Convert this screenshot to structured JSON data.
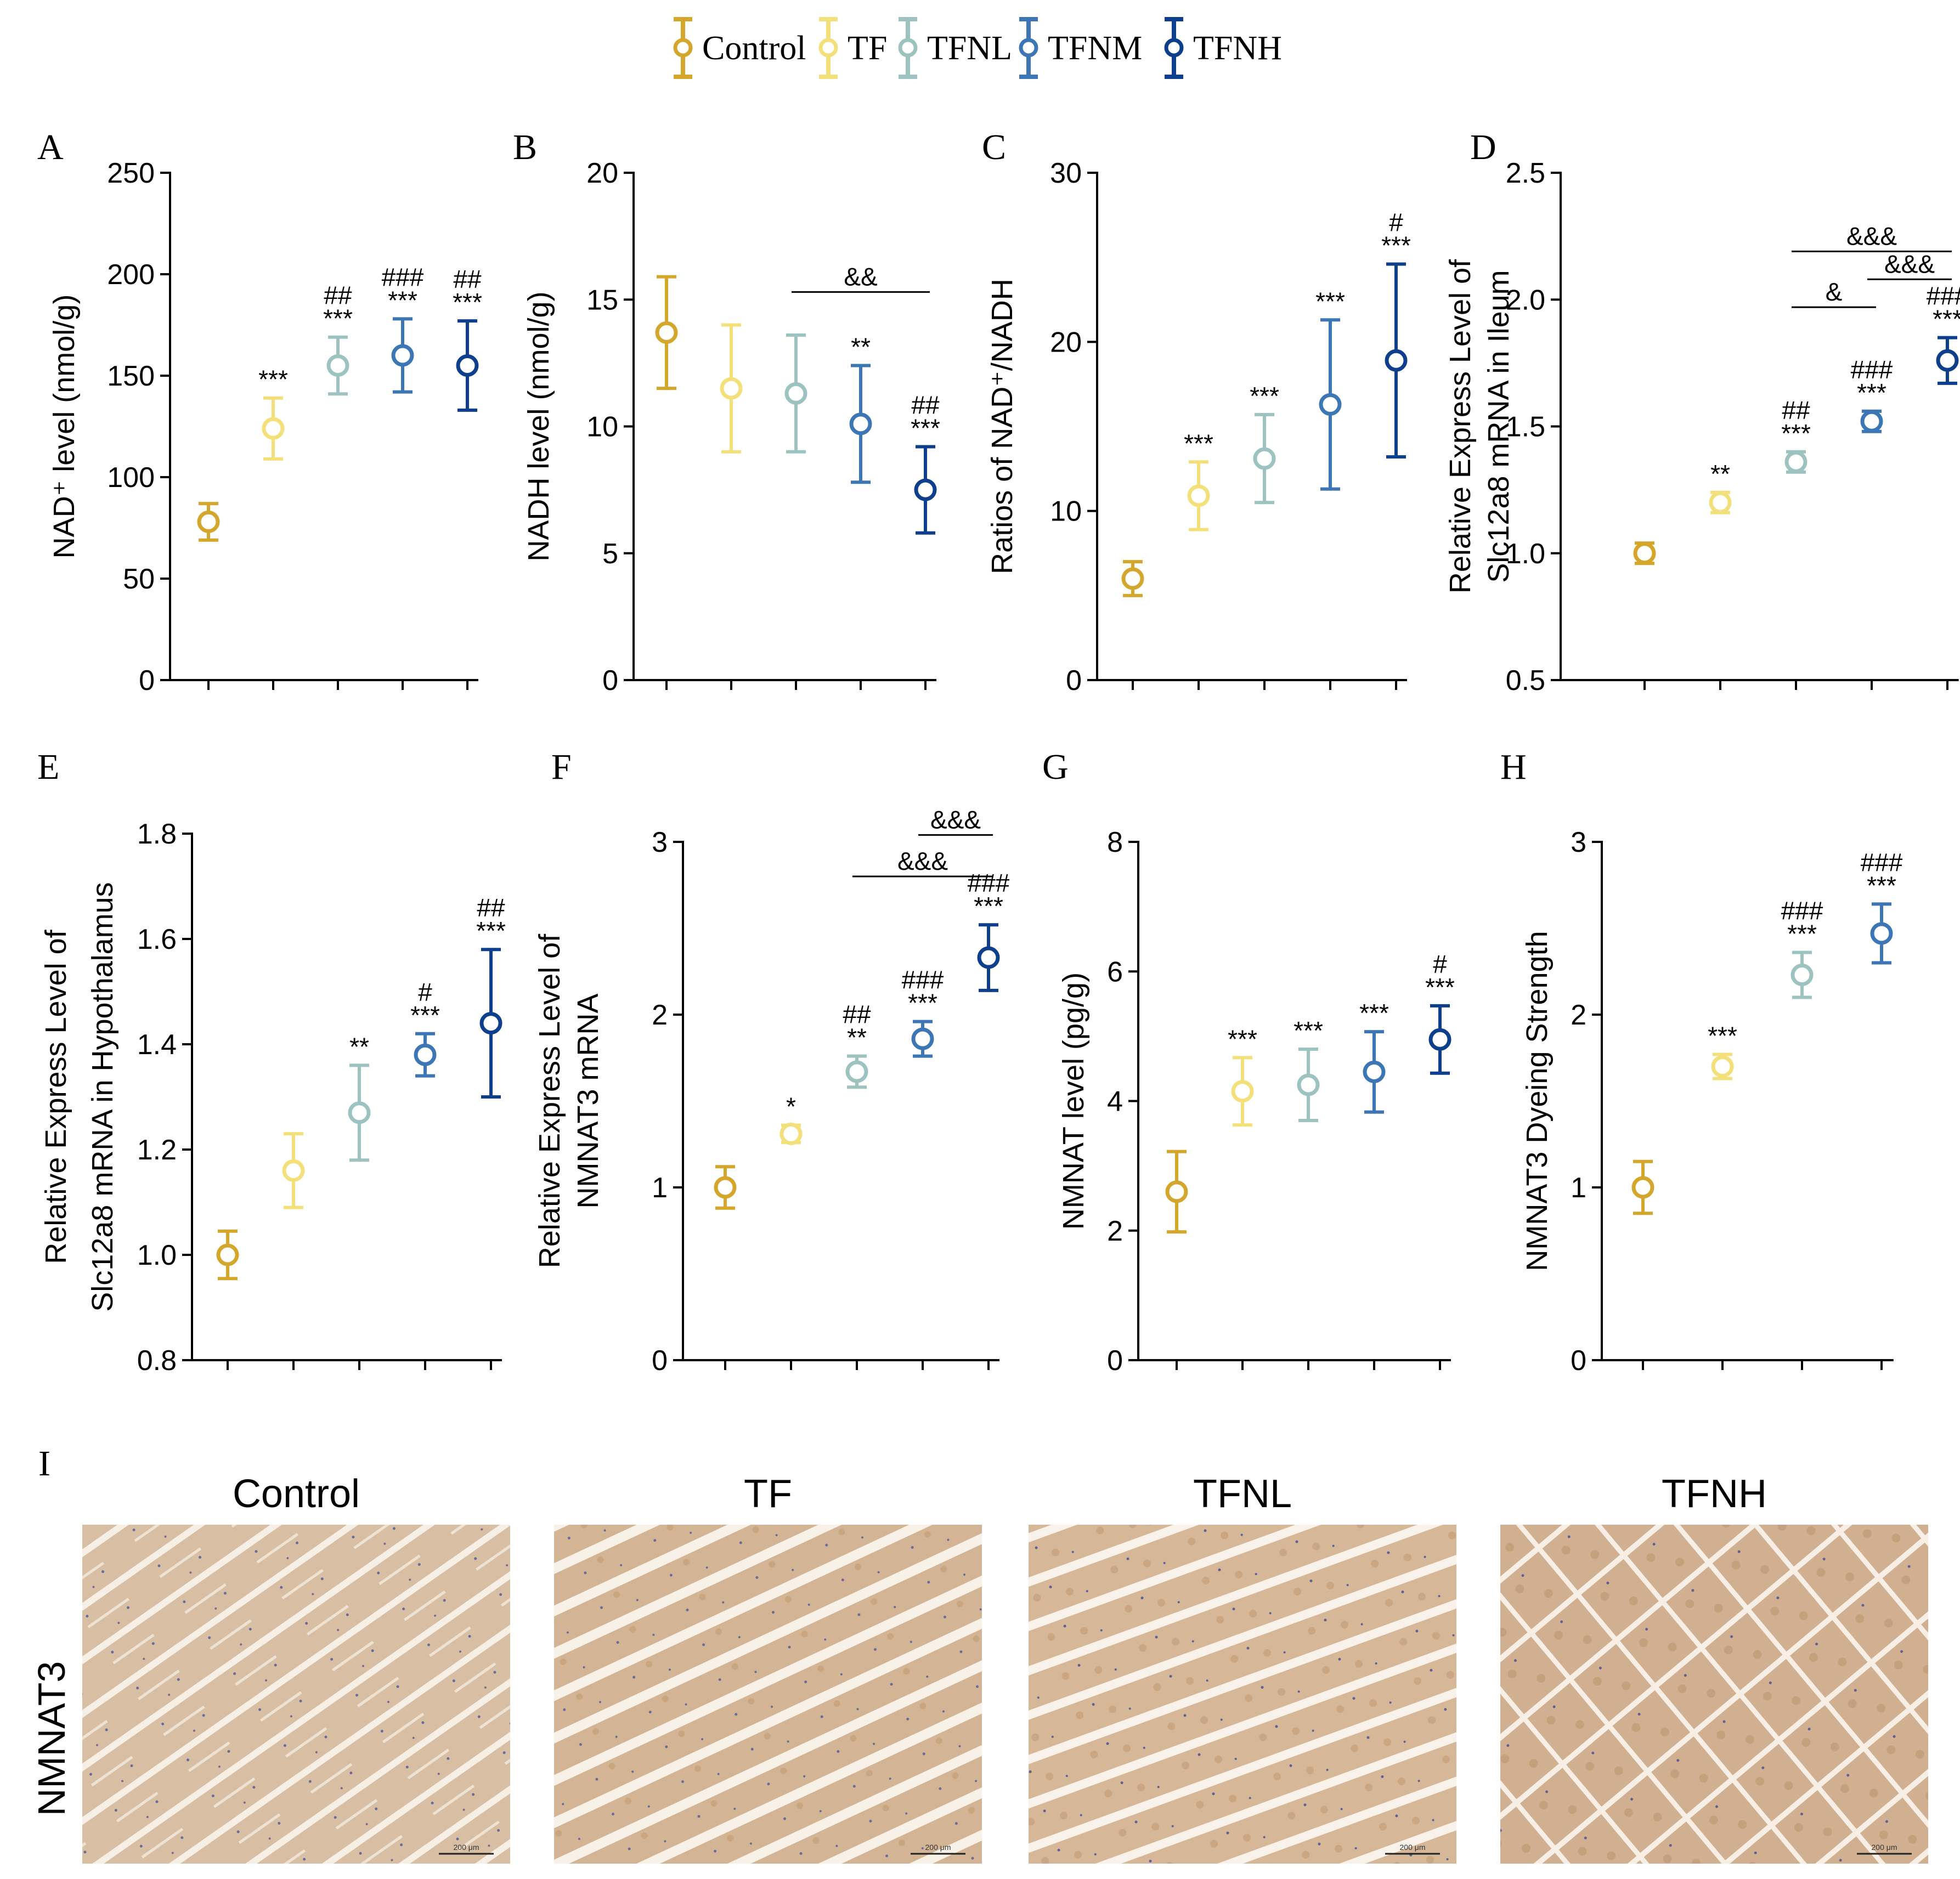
{
  "legend": {
    "groups": [
      {
        "name": "Control",
        "color": "#D4A72C"
      },
      {
        "name": "TF",
        "color": "#F4E07A"
      },
      {
        "name": "TFNL",
        "color": "#9DC3C0"
      },
      {
        "name": "TFNM",
        "color": "#3C76B5"
      },
      {
        "name": "TFNH",
        "color": "#0E3F8C"
      }
    ]
  },
  "chart_data": [
    {
      "panel": "A",
      "type": "scatter",
      "ylabel": "NAD⁺ level (nmol/g)",
      "ylim": [
        0,
        250
      ],
      "yticks": [
        0,
        50,
        100,
        150,
        200,
        250
      ],
      "mean": [
        78,
        124,
        155,
        160,
        155
      ],
      "err": [
        9,
        15,
        14,
        18,
        22
      ],
      "sig": [
        [],
        [
          "***"
        ],
        [
          "***",
          "##"
        ],
        [
          "***",
          "###"
        ],
        [
          "***",
          "##"
        ]
      ],
      "brackets": []
    },
    {
      "panel": "B",
      "type": "scatter",
      "ylabel": "NADH level (nmol/g)",
      "ylim": [
        0,
        20
      ],
      "yticks": [
        0,
        5,
        10,
        15,
        20
      ],
      "mean": [
        13.7,
        11.5,
        11.3,
        10.1,
        7.5
      ],
      "err": [
        2.2,
        2.5,
        2.3,
        2.3,
        1.7
      ],
      "sig": [
        [],
        [],
        [],
        [
          "**"
        ],
        [
          "***",
          "##"
        ]
      ],
      "brackets": [
        {
          "from": 2,
          "to": 4,
          "value": 15.3,
          "label": "&&"
        }
      ]
    },
    {
      "panel": "C",
      "type": "scatter",
      "ylabel": "Ratios of NAD⁺/NADH",
      "ylim": [
        0,
        30
      ],
      "yticks": [
        0,
        10,
        20,
        30
      ],
      "mean": [
        6.0,
        10.9,
        13.1,
        16.3,
        18.9
      ],
      "err": [
        1.0,
        2.0,
        2.6,
        5.0,
        5.7
      ],
      "sig": [
        [],
        [
          "***"
        ],
        [
          "***"
        ],
        [
          "***"
        ],
        [
          "***",
          "#"
        ]
      ],
      "brackets": []
    },
    {
      "panel": "D",
      "type": "scatter",
      "ylabel_lines": [
        "Relative Express Level of",
        "Slc12a8 mRNA in Ileum"
      ],
      "ylim": [
        0.5,
        2.5
      ],
      "yticks": [
        0.5,
        1.0,
        1.5,
        2.0,
        2.5
      ],
      "mean": [
        1.0,
        1.2,
        1.36,
        1.52,
        1.76
      ],
      "err": [
        0.04,
        0.04,
        0.04,
        0.04,
        0.09
      ],
      "sig": [
        [],
        [
          "**"
        ],
        [
          "***",
          "##"
        ],
        [
          "***",
          "###"
        ],
        [
          "***",
          "###"
        ]
      ],
      "brackets": [
        {
          "from": 2,
          "to": 4,
          "value": 2.19,
          "label": "&&&"
        },
        {
          "from": 3,
          "to": 4,
          "value": 2.08,
          "label": "&&&"
        },
        {
          "from": 2,
          "to": 3,
          "value": 1.97,
          "label": "&"
        }
      ]
    },
    {
      "panel": "E",
      "type": "scatter",
      "ylabel_lines": [
        "Relative Express Level of",
        "Slc12a8 mRNA in Hypothalamus"
      ],
      "ylim": [
        0.8,
        1.8
      ],
      "yticks": [
        0.8,
        1.0,
        1.2,
        1.4,
        1.6,
        1.8
      ],
      "mean": [
        1.0,
        1.16,
        1.27,
        1.38,
        1.44
      ],
      "err": [
        0.045,
        0.07,
        0.09,
        0.04,
        0.14
      ],
      "sig": [
        [],
        [],
        [
          "**"
        ],
        [
          "***",
          "#"
        ],
        [
          "***",
          "##"
        ]
      ],
      "brackets": []
    },
    {
      "panel": "F",
      "type": "scatter",
      "ylabel_lines": [
        "Relative Express Level of",
        "NMNAT3 mRNA"
      ],
      "ylim": [
        0,
        3
      ],
      "yticks": [
        0,
        1,
        2,
        3
      ],
      "mean": [
        1.0,
        1.31,
        1.67,
        1.86,
        2.33
      ],
      "err": [
        0.12,
        0.05,
        0.09,
        0.1,
        0.19
      ],
      "sig": [
        [],
        [
          "*"
        ],
        [
          "**",
          "##"
        ],
        [
          "***",
          "###"
        ],
        [
          "***",
          "###"
        ]
      ],
      "brackets": [
        {
          "from": 2,
          "to": 4,
          "value": 2.8,
          "label": "&&&"
        },
        {
          "from": 3,
          "to": 4,
          "value": 3.04,
          "label": "&&&"
        }
      ]
    },
    {
      "panel": "G",
      "type": "scatter",
      "ylabel": "NMNAT level (pg/g)",
      "ylim": [
        0,
        8
      ],
      "yticks": [
        0,
        2,
        4,
        6,
        8
      ],
      "mean": [
        2.6,
        4.15,
        4.25,
        4.45,
        4.95
      ],
      "err": [
        0.62,
        0.52,
        0.55,
        0.62,
        0.52
      ],
      "sig": [
        [],
        [
          "***"
        ],
        [
          "***"
        ],
        [
          "***"
        ],
        [
          "***",
          "#"
        ]
      ],
      "brackets": []
    },
    {
      "panel": "H",
      "type": "scatter",
      "ylabel": "NMNAT3 Dyeing Strength",
      "ylim": [
        0,
        3
      ],
      "yticks": [
        0,
        1,
        2,
        3
      ],
      "group_index": [
        0,
        1,
        2,
        3
      ],
      "mean": [
        1.0,
        1.7,
        2.23,
        2.47
      ],
      "err": [
        0.15,
        0.07,
        0.13,
        0.17
      ],
      "sig": [
        [],
        [
          "***"
        ],
        [
          "***",
          "###"
        ],
        [
          "***",
          "###"
        ]
      ],
      "brackets": []
    }
  ],
  "images": {
    "panel": "I",
    "row_label": "NMNAT3",
    "titles": [
      "Control",
      "TF",
      "TFNL",
      "TFNH"
    ],
    "scale_bar": "200 μm"
  }
}
